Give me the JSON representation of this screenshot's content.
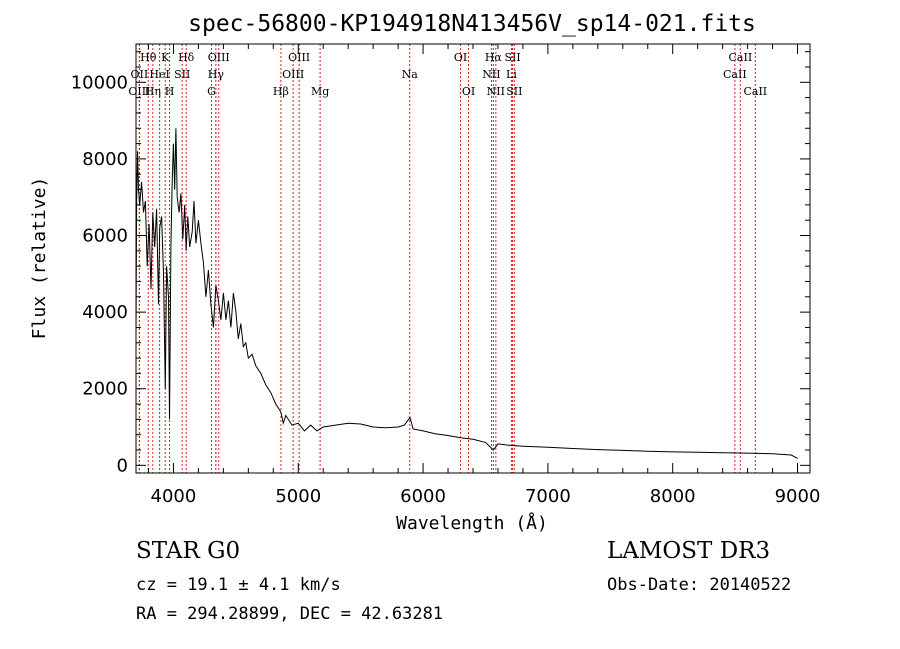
{
  "chart_data": {
    "type": "line",
    "title": "spec-56800-KP194918N413456V_sp14-021.fits",
    "xlabel": "Wavelength (Å)",
    "ylabel": "Flux (relative)",
    "xlim": [
      3700,
      9100
    ],
    "ylim": [
      -200,
      11000
    ],
    "xticks": [
      4000,
      5000,
      6000,
      7000,
      8000,
      9000
    ],
    "yticks": [
      0,
      2000,
      4000,
      6000,
      8000,
      10000
    ],
    "grid": false,
    "series": [
      {
        "name": "spectrum",
        "color": "#000000",
        "points": [
          [
            3700,
            3400
          ],
          [
            3705,
            6800
          ],
          [
            3712,
            8200
          ],
          [
            3720,
            7200
          ],
          [
            3730,
            6800
          ],
          [
            3745,
            7400
          ],
          [
            3760,
            6600
          ],
          [
            3775,
            6900
          ],
          [
            3790,
            5200
          ],
          [
            3805,
            6300
          ],
          [
            3820,
            4600
          ],
          [
            3835,
            6600
          ],
          [
            3850,
            5700
          ],
          [
            3865,
            6700
          ],
          [
            3880,
            4200
          ],
          [
            3890,
            6200
          ],
          [
            3905,
            6500
          ],
          [
            3920,
            5000
          ],
          [
            3935,
            2000
          ],
          [
            3945,
            5200
          ],
          [
            3960,
            4400
          ],
          [
            3968,
            1200
          ],
          [
            3980,
            5700
          ],
          [
            3990,
            7400
          ],
          [
            4000,
            8400
          ],
          [
            4010,
            7200
          ],
          [
            4020,
            8800
          ],
          [
            4030,
            7000
          ],
          [
            4045,
            6600
          ],
          [
            4060,
            7100
          ],
          [
            4075,
            5900
          ],
          [
            4090,
            6800
          ],
          [
            4101,
            5600
          ],
          [
            4115,
            6500
          ],
          [
            4130,
            5700
          ],
          [
            4150,
            6100
          ],
          [
            4165,
            6900
          ],
          [
            4180,
            5800
          ],
          [
            4200,
            6400
          ],
          [
            4220,
            5800
          ],
          [
            4240,
            5300
          ],
          [
            4260,
            4400
          ],
          [
            4280,
            5100
          ],
          [
            4300,
            4200
          ],
          [
            4320,
            3600
          ],
          [
            4340,
            4700
          ],
          [
            4360,
            4300
          ],
          [
            4380,
            3800
          ],
          [
            4400,
            4500
          ],
          [
            4420,
            3800
          ],
          [
            4440,
            4300
          ],
          [
            4460,
            3600
          ],
          [
            4480,
            4500
          ],
          [
            4500,
            4000
          ],
          [
            4520,
            3300
          ],
          [
            4540,
            3700
          ],
          [
            4560,
            3100
          ],
          [
            4580,
            3200
          ],
          [
            4600,
            2800
          ],
          [
            4630,
            2900
          ],
          [
            4660,
            2600
          ],
          [
            4700,
            2400
          ],
          [
            4740,
            2100
          ],
          [
            4780,
            1900
          ],
          [
            4820,
            1600
          ],
          [
            4860,
            1400
          ],
          [
            4880,
            1100
          ],
          [
            4900,
            1300
          ],
          [
            4950,
            1050
          ],
          [
            5000,
            1100
          ],
          [
            5050,
            900
          ],
          [
            5100,
            1050
          ],
          [
            5150,
            900
          ],
          [
            5200,
            1000
          ],
          [
            5300,
            1050
          ],
          [
            5400,
            1100
          ],
          [
            5500,
            1080
          ],
          [
            5600,
            1000
          ],
          [
            5700,
            980
          ],
          [
            5800,
            1000
          ],
          [
            5850,
            1050
          ],
          [
            5895,
            1250
          ],
          [
            5920,
            950
          ],
          [
            6000,
            900
          ],
          [
            6100,
            820
          ],
          [
            6200,
            780
          ],
          [
            6300,
            720
          ],
          [
            6400,
            680
          ],
          [
            6500,
            600
          ],
          [
            6563,
            400
          ],
          [
            6600,
            560
          ],
          [
            6700,
            520
          ],
          [
            6800,
            500
          ],
          [
            7000,
            470
          ],
          [
            7200,
            440
          ],
          [
            7400,
            410
          ],
          [
            7600,
            390
          ],
          [
            7800,
            370
          ],
          [
            8000,
            350
          ],
          [
            8200,
            340
          ],
          [
            8400,
            330
          ],
          [
            8600,
            320
          ],
          [
            8800,
            300
          ],
          [
            8950,
            270
          ],
          [
            9000,
            180
          ]
        ]
      }
    ],
    "lines": [
      {
        "label": "Hθ",
        "wl": 3798,
        "row": 1
      },
      {
        "label": "OII",
        "wl": 3727,
        "row": 2
      },
      {
        "label": "OIII",
        "wl": 3727,
        "row": 3
      },
      {
        "label": "Hη",
        "wl": 3835,
        "row": 3
      },
      {
        "label": "HeI",
        "wl": 3889,
        "row": 2
      },
      {
        "label": "K",
        "wl": 3934,
        "row": 1
      },
      {
        "label": "SII",
        "wl": 4070,
        "row": 2
      },
      {
        "label": "H",
        "wl": 3969,
        "row": 3
      },
      {
        "label": "Hδ",
        "wl": 4102,
        "row": 1
      },
      {
        "label": "OIII",
        "wl": 4363,
        "row": 1
      },
      {
        "label": "Hγ",
        "wl": 4340,
        "row": 2
      },
      {
        "label": "G",
        "wl": 4305,
        "row": 3
      },
      {
        "label": "Hβ",
        "wl": 4861,
        "row": 3
      },
      {
        "label": "OIII",
        "wl": 4959,
        "row": 2
      },
      {
        "label": "OIII",
        "wl": 5007,
        "row": 1
      },
      {
        "label": "Mg",
        "wl": 5175,
        "row": 3
      },
      {
        "label": "Na",
        "wl": 5893,
        "row": 2
      },
      {
        "label": "OI",
        "wl": 6300,
        "row": 1
      },
      {
        "label": "OI",
        "wl": 6364,
        "row": 3
      },
      {
        "label": "Hα",
        "wl": 6563,
        "row": 1
      },
      {
        "label": "NII",
        "wl": 6548,
        "row": 2
      },
      {
        "label": "NII",
        "wl": 6583,
        "row": 3
      },
      {
        "label": "SII",
        "wl": 6717,
        "row": 1
      },
      {
        "label": "Li",
        "wl": 6708,
        "row": 2
      },
      {
        "label": "SII",
        "wl": 6731,
        "row": 3
      },
      {
        "label": "CaII",
        "wl": 8542,
        "row": 1
      },
      {
        "label": "CaII",
        "wl": 8498,
        "row": 2
      },
      {
        "label": "CaII",
        "wl": 8662,
        "row": 3
      }
    ],
    "line_color": "#d62020"
  },
  "info": {
    "class_label": "STAR    G0",
    "survey": "LAMOST DR3",
    "redshift": "cz = 19.1 ± 4.1 km/s",
    "obs_date": "Obs-Date: 20140522",
    "radec": "RA = 294.28899, DEC =  42.63281"
  }
}
